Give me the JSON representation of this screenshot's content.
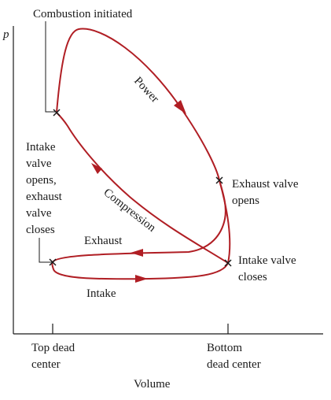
{
  "labels": {
    "combustion": "Combustion initiated",
    "power": "Power",
    "compression": "Compression",
    "exhaust_stroke": "Exhaust",
    "intake_stroke": "Intake",
    "exhaust_valve_opens": [
      "Exhaust valve",
      "opens"
    ],
    "intake_valve_closes": [
      "Intake valve",
      "closes"
    ],
    "intake_opens_exhaust_closes": [
      "Intake",
      "valve",
      "opens,",
      "exhaust",
      "valve",
      "closes"
    ]
  },
  "axes": {
    "y_label": "p",
    "x_label": "Volume",
    "tick_left": [
      "Top dead",
      "center"
    ],
    "tick_right": [
      "Bottom",
      "dead center"
    ]
  },
  "colors": {
    "cycle": "#b01e24",
    "ink": "#1a1a1a"
  }
}
